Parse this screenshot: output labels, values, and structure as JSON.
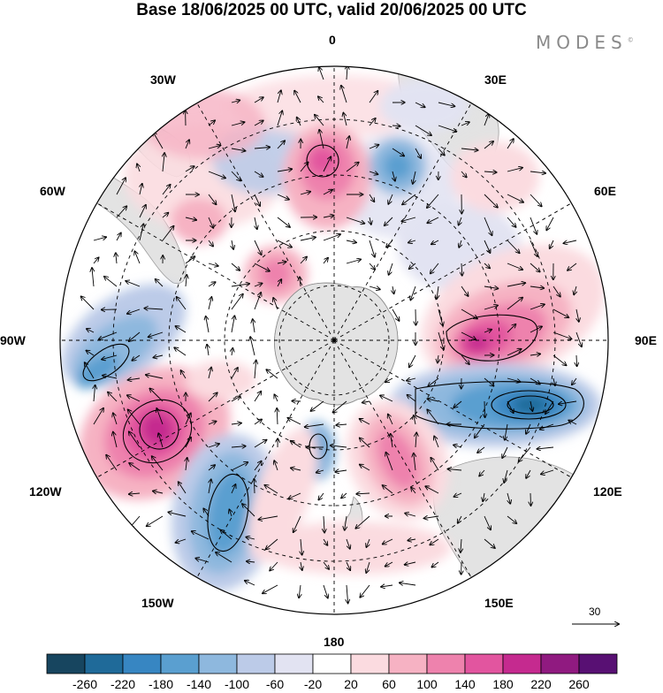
{
  "title": "Base 18/06/2025 00 UTC, valid 20/06/2025 00 UTC",
  "brand": "MODES",
  "brand_mark": "©",
  "longitude_labels": {
    "lon_0": "0",
    "lon_30e": "30E",
    "lon_60e": "60E",
    "lon_90e": "90E",
    "lon_120e": "120E",
    "lon_150e": "150E",
    "lon_180": "180",
    "lon_150w": "150W",
    "lon_120w": "120W",
    "lon_90w": "90W",
    "lon_60w": "60W",
    "lon_30w": "30W"
  },
  "reference_vector": {
    "label": "30"
  },
  "colorbar": {
    "tick_labels": [
      "-260",
      "-220",
      "-180",
      "-140",
      "-100",
      "-60",
      "-20",
      "20",
      "60",
      "100",
      "140",
      "180",
      "220",
      "260"
    ],
    "colors": [
      "#17455f",
      "#1f6a99",
      "#3786c2",
      "#5a9fd0",
      "#8eb8de",
      "#bccbe8",
      "#e2e3f2",
      "#ffffff",
      "#fbdbe0",
      "#f6b2c3",
      "#ee82ad",
      "#e2559f",
      "#c52a8f",
      "#901a80",
      "#581073"
    ]
  },
  "chart_data": {
    "type": "heatmap",
    "projection": "south polar stereographic",
    "title": "Base 18/06/2025 00 UTC, valid 20/06/2025 00 UTC",
    "colorbar_levels": [
      -260,
      -220,
      -180,
      -140,
      -100,
      -60,
      -20,
      20,
      60,
      100,
      140,
      180,
      220,
      260
    ],
    "features": [
      {
        "lon": -105,
        "lat": -47,
        "value": 220,
        "sign": "positive"
      },
      {
        "lon": -145,
        "lat": -52,
        "value": -170,
        "sign": "negative"
      },
      {
        "lon": -85,
        "lat": -48,
        "value": -140,
        "sign": "negative"
      },
      {
        "lon": 85,
        "lat": -58,
        "value": 200,
        "sign": "positive"
      },
      {
        "lon": 100,
        "lat": -50,
        "value": -230,
        "sign": "negative"
      },
      {
        "lon": 5,
        "lat": -55,
        "value": 140,
        "sign": "positive"
      },
      {
        "lon": 30,
        "lat": -50,
        "value": -100,
        "sign": "negative"
      },
      {
        "lon": 160,
        "lat": -62,
        "value": 140,
        "sign": "positive"
      },
      {
        "lon": 175,
        "lat": -68,
        "value": -100,
        "sign": "negative"
      },
      {
        "lon": -40,
        "lat": -62,
        "value": 100,
        "sign": "positive"
      },
      {
        "lon": -25,
        "lat": -55,
        "value": -80,
        "sign": "negative"
      }
    ]
  }
}
